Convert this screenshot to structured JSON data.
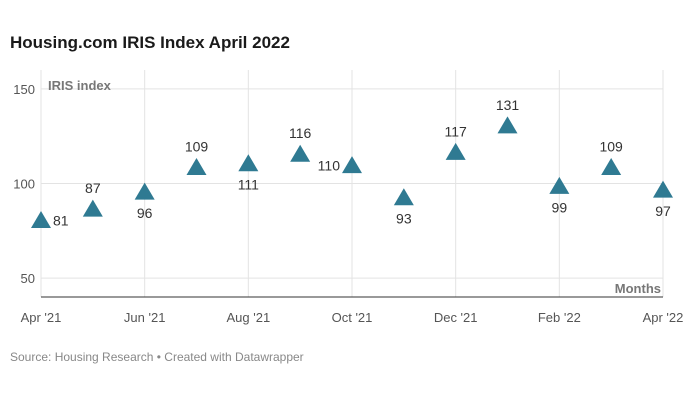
{
  "title": "Housing.com IRIS Index April 2022",
  "source": "Source: Housing Research • Created with Datawrapper",
  "chart_data": {
    "type": "scatter",
    "title": "Housing.com IRIS Index April 2022",
    "xlabel": "Months",
    "ylabel": "IRIS index",
    "ylim": [
      40,
      160
    ],
    "yticks": [
      50,
      100,
      150
    ],
    "xtick_labels": [
      "Apr '21",
      "Jun '21",
      "Aug '21",
      "Oct '21",
      "Dec '21",
      "Feb '22",
      "Apr '22"
    ],
    "marker": "triangle",
    "colors": {
      "marker": "#2f7a92",
      "grid": "#e3e3e3",
      "text": "#333333",
      "axis_label": "#777777"
    },
    "points": [
      {
        "x": "Apr '21",
        "y": 81
      },
      {
        "x": "May '21",
        "y": 87
      },
      {
        "x": "Jun '21",
        "y": 96
      },
      {
        "x": "Jul '21",
        "y": 109
      },
      {
        "x": "Aug '21",
        "y": 111
      },
      {
        "x": "Sep '21",
        "y": 116
      },
      {
        "x": "Oct '21",
        "y": 110
      },
      {
        "x": "Nov '21",
        "y": 93
      },
      {
        "x": "Dec '21",
        "y": 117
      },
      {
        "x": "Jan '22",
        "y": 131
      },
      {
        "x": "Feb '22",
        "y": 99
      },
      {
        "x": "Mar '22",
        "y": 109
      },
      {
        "x": "Apr '22",
        "y": 97
      }
    ]
  }
}
